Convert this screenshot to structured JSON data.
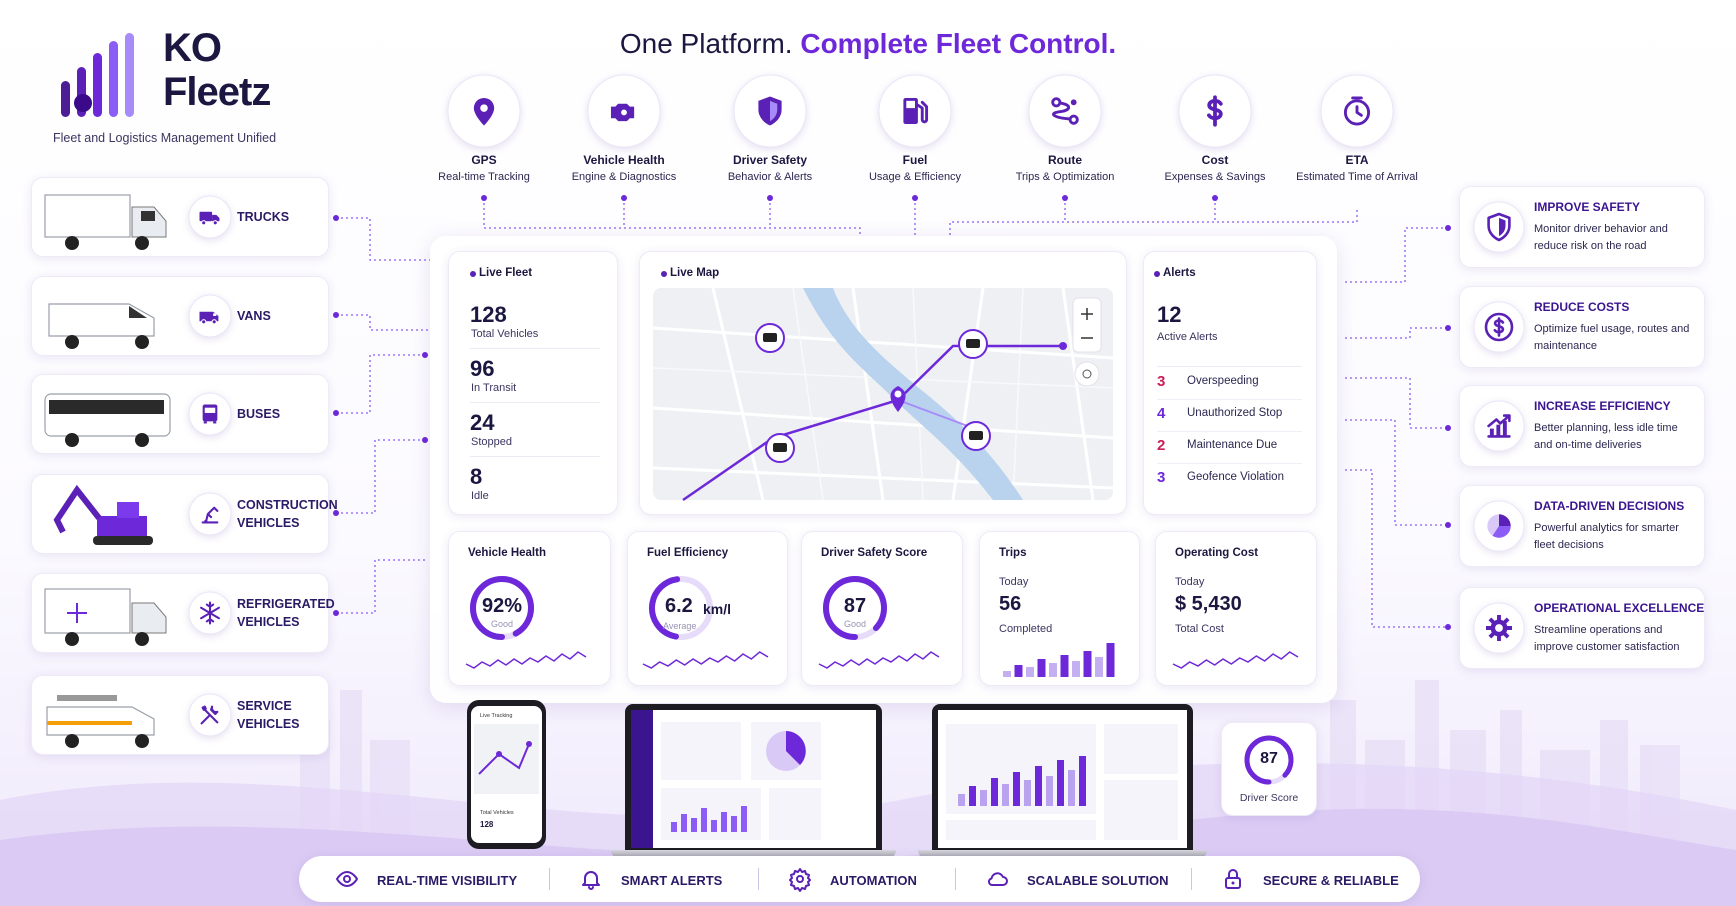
{
  "brand": {
    "name_line1": "KO",
    "name_line2": "Fleetz",
    "tagline": "Fleet and Logistics Management Unified"
  },
  "header": {
    "title_plain": "One Platform.",
    "title_accent": "Complete Fleet Control."
  },
  "features": [
    {
      "title": "GPS",
      "subtitle": "Real-time Tracking"
    },
    {
      "title": "Vehicle Health",
      "subtitle": "Engine & Diagnostics"
    },
    {
      "title": "Driver Safety",
      "subtitle": "Behavior & Alerts"
    },
    {
      "title": "Fuel",
      "subtitle": "Usage & Efficiency"
    },
    {
      "title": "Route",
      "subtitle": "Trips & Optimization"
    },
    {
      "title": "Cost",
      "subtitle": "Expenses & Savings"
    },
    {
      "title": "ETA",
      "subtitle": "Estimated Time of Arrival"
    }
  ],
  "vehicles": [
    "TRUCKS",
    "VANS",
    "BUSES",
    "CONSTRUCTION VEHICLES",
    "REFRIGERATED VEHICLES",
    "SERVICE VEHICLES"
  ],
  "dashboard": {
    "live_fleet": {
      "title": "Live Fleet",
      "stats": [
        {
          "value": 128,
          "label": "Total Vehicles"
        },
        {
          "value": 96,
          "label": "In Transit"
        },
        {
          "value": 24,
          "label": "Stopped"
        },
        {
          "value": 8,
          "label": "Idle"
        }
      ]
    },
    "live_map": {
      "title": "Live Map"
    },
    "alerts": {
      "title": "Alerts",
      "total": 12,
      "total_label": "Active Alerts",
      "items": [
        {
          "count": 3,
          "label": "Overspeeding",
          "color": "#c81e5a"
        },
        {
          "count": 4,
          "label": "Unauthorized Stop",
          "color": "#6d28d9"
        },
        {
          "count": 2,
          "label": "Maintenance Due",
          "color": "#c81e5a"
        },
        {
          "count": 3,
          "label": "Geofence Violation",
          "color": "#6d28d9"
        }
      ]
    },
    "kpis": [
      {
        "title": "Vehicle Health",
        "gauge": 92,
        "value_label": "92%",
        "note": "Good"
      },
      {
        "title": "Fuel Efficiency",
        "value": 6.2,
        "unit": "km/l",
        "note": "Average"
      },
      {
        "title": "Driver Safety Score",
        "gauge": 87,
        "note": "Good"
      },
      {
        "title": "Trips",
        "period": "Today",
        "value": 56,
        "note": "Completed"
      },
      {
        "title": "Operating Cost",
        "period": "Today",
        "value": "$ 5,430",
        "note": "Total Cost"
      }
    ]
  },
  "benefits": [
    {
      "title": "IMPROVE SAFETY",
      "text": "Monitor driver behavior and reduce risk on the road"
    },
    {
      "title": "REDUCE COSTS",
      "text": "Optimize fuel usage, routes and maintenance"
    },
    {
      "title": "INCREASE EFFICIENCY",
      "text": "Better planning, less idle time and on-time deliveries"
    },
    {
      "title": "DATA-DRIVEN DECISIONS",
      "text": "Powerful analytics for smarter fleet decisions"
    },
    {
      "title": "OPERATIONAL EXCELLENCE",
      "text": "Streamline operations and improve customer satisfaction"
    }
  ],
  "devices": {
    "phone": {
      "title": "Live Tracking",
      "stat_label": "Total Vehicles",
      "stat_value": 128
    }
  },
  "driver_score": {
    "value": 87,
    "label": "Driver Score"
  },
  "footer": [
    "REAL-TIME VISIBILITY",
    "SMART ALERTS",
    "AUTOMATION",
    "SCALABLE SOLUTION",
    "SECURE & RELIABLE"
  ]
}
